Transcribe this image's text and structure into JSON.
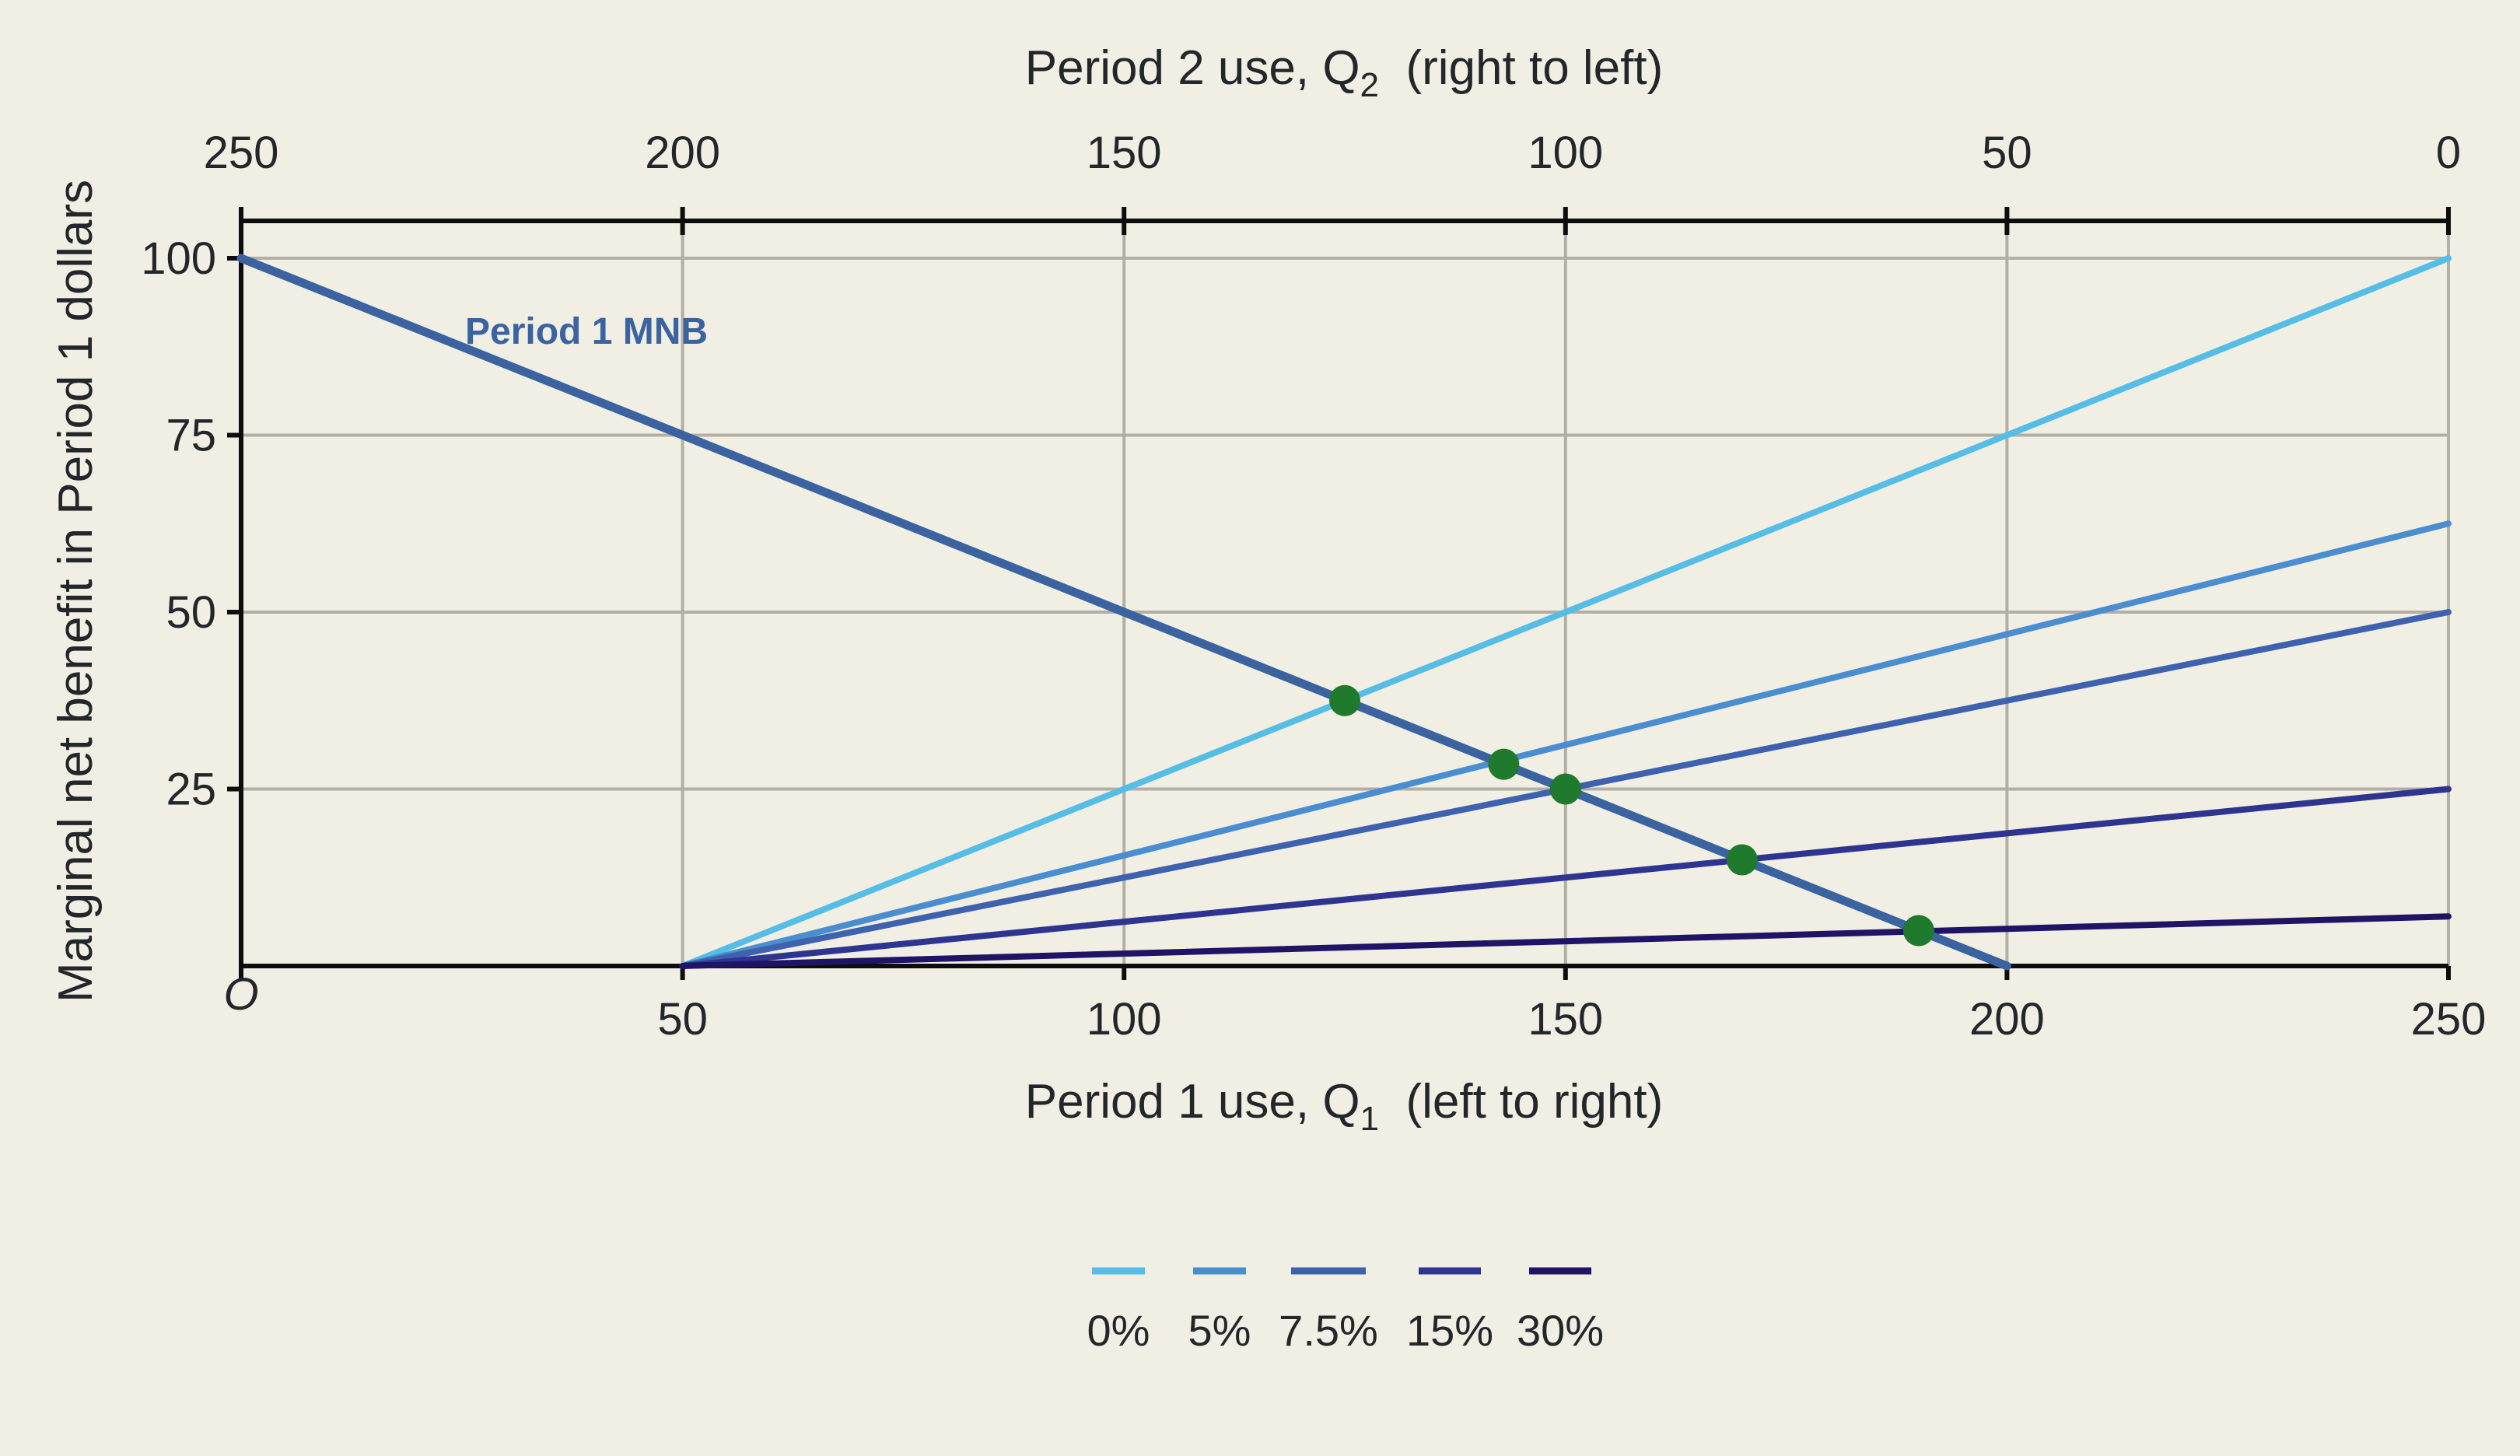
{
  "chart_data": {
    "type": "line",
    "x_bottom": {
      "label_main": "Period 1 use, Q",
      "label_sub": "1",
      "label_tail": "  (left to right)",
      "range": [
        0,
        250
      ],
      "ticks": [
        0,
        50,
        100,
        150,
        200,
        250
      ],
      "tick_labels": [
        "O",
        "50",
        "100",
        "150",
        "200",
        "250"
      ]
    },
    "x_top": {
      "label_main": "Period 2 use, Q",
      "label_sub": "2",
      "label_tail": "  (right to left)",
      "ticks": [
        0,
        50,
        100,
        150,
        200,
        250
      ],
      "tick_labels": [
        "250",
        "200",
        "150",
        "100",
        "50",
        "0"
      ]
    },
    "y": {
      "label": "Marginal net benefit in Period 1 dollars",
      "range": [
        0,
        100
      ],
      "ticks": [
        25,
        50,
        75,
        100
      ],
      "tick_labels": [
        "25",
        "50",
        "75",
        "100"
      ]
    },
    "grid": true,
    "mnb": {
      "label": "Period 1 MNB",
      "color": "#3a63a0",
      "points": [
        [
          0,
          100
        ],
        [
          200,
          0
        ]
      ]
    },
    "series": [
      {
        "name": "0%",
        "color": "#55bde6",
        "points": [
          [
            50,
            0
          ],
          [
            250,
            100
          ]
        ]
      },
      {
        "name": "5%",
        "color": "#4a8ed0",
        "points": [
          [
            50,
            0
          ],
          [
            250,
            62.5
          ]
        ]
      },
      {
        "name": "7.5%",
        "color": "#3e62ae",
        "points": [
          [
            50,
            0
          ],
          [
            250,
            50
          ]
        ]
      },
      {
        "name": "15%",
        "color": "#2e3590",
        "points": [
          [
            50,
            0
          ],
          [
            250,
            25
          ]
        ]
      },
      {
        "name": "30%",
        "color": "#1f1466",
        "points": [
          [
            50,
            0
          ],
          [
            250,
            7
          ]
        ]
      }
    ],
    "intersections": [
      [
        125,
        37.5
      ],
      [
        143,
        28.5
      ],
      [
        150,
        25
      ],
      [
        170,
        15
      ],
      [
        190,
        5
      ]
    ],
    "intersection_color": "#1f7a2e",
    "legend_position": "bottom-center"
  }
}
